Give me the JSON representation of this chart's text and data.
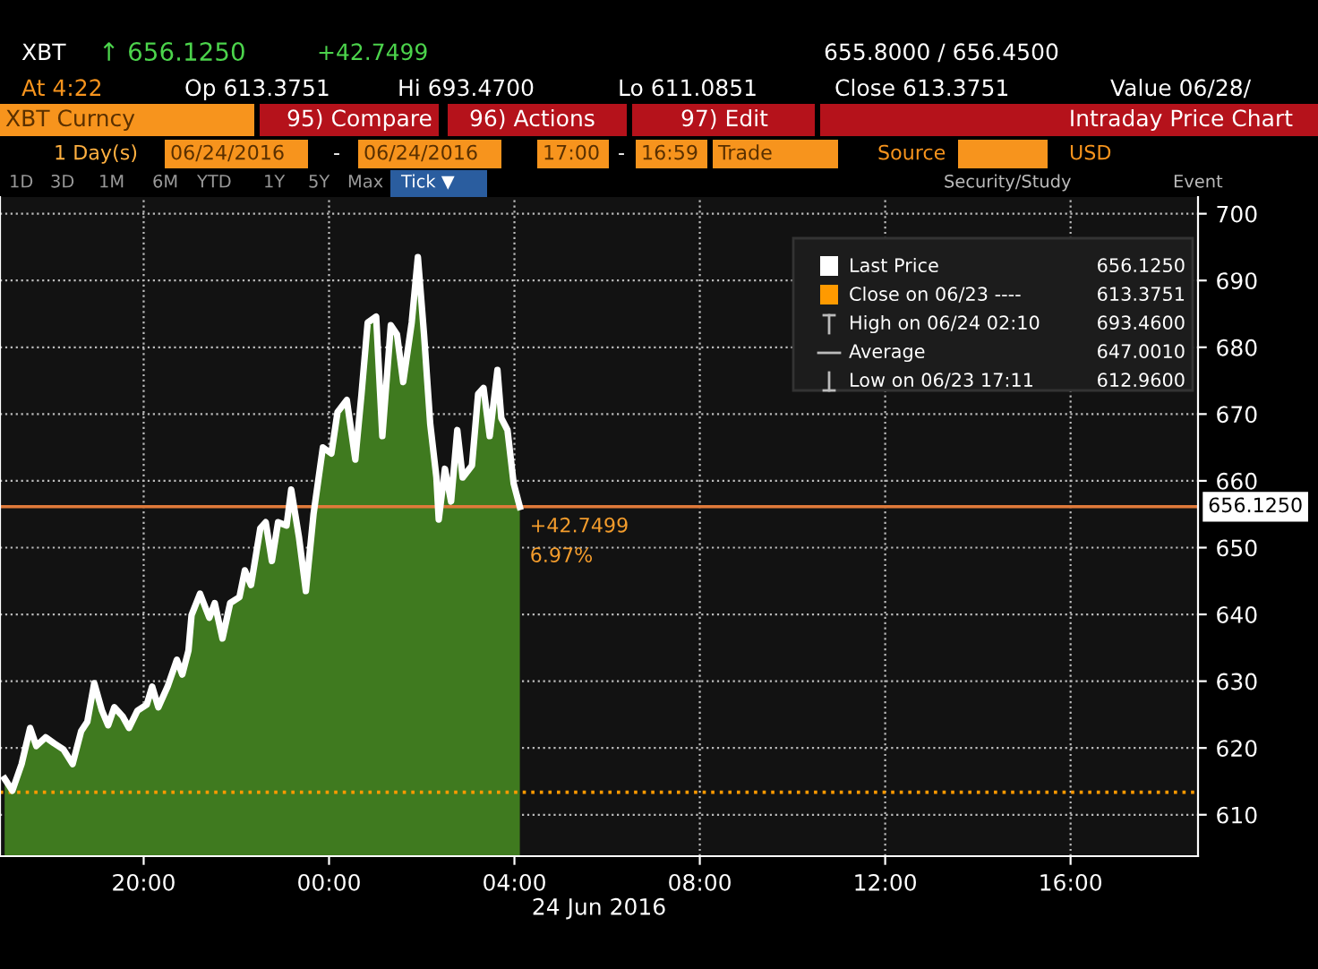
{
  "chart_data": {
    "type": "area",
    "title": "Intraday Price Chart",
    "xlabel": "24 Jun 2016",
    "x": [
      "2016-06-23T17:00",
      "2016-06-23T17:10",
      "2016-06-23T17:22",
      "2016-06-23T17:33",
      "2016-06-23T17:41",
      "2016-06-23T17:53",
      "2016-06-23T18:04",
      "2016-06-23T18:16",
      "2016-06-23T18:28",
      "2016-06-23T18:39",
      "2016-06-23T18:47",
      "2016-06-23T18:56",
      "2016-06-23T19:06",
      "2016-06-23T19:14",
      "2016-06-23T19:22",
      "2016-06-23T19:33",
      "2016-06-23T19:41",
      "2016-06-23T19:52",
      "2016-06-23T20:04",
      "2016-06-23T20:11",
      "2016-06-23T20:19",
      "2016-06-23T20:31",
      "2016-06-23T20:43",
      "2016-06-23T20:50",
      "2016-06-23T20:58",
      "2016-06-23T21:02",
      "2016-06-23T21:13",
      "2016-06-23T21:25",
      "2016-06-23T21:32",
      "2016-06-23T21:42",
      "2016-06-23T21:52",
      "2016-06-23T22:04",
      "2016-06-23T22:11",
      "2016-06-23T22:19",
      "2016-06-23T22:31",
      "2016-06-23T22:38",
      "2016-06-23T22:46",
      "2016-06-23T22:54",
      "2016-06-23T23:05",
      "2016-06-23T23:11",
      "2016-06-23T23:21",
      "2016-06-23T23:30",
      "2016-06-23T23:40",
      "2016-06-23T23:52",
      "2016-06-24T00:03",
      "2016-06-24T00:11",
      "2016-06-24T00:23",
      "2016-06-24T00:34",
      "2016-06-24T00:42",
      "2016-06-24T00:50",
      "2016-06-24T01:01",
      "2016-06-24T01:09",
      "2016-06-24T01:20",
      "2016-06-24T01:28",
      "2016-06-24T01:36",
      "2016-06-24T01:47",
      "2016-06-24T01:55",
      "2016-06-24T02:03",
      "2016-06-24T02:11",
      "2016-06-24T02:19",
      "2016-06-24T02:22",
      "2016-06-24T02:30",
      "2016-06-24T02:38",
      "2016-06-24T02:46",
      "2016-06-24T02:53",
      "2016-06-24T03:05",
      "2016-06-24T03:13",
      "2016-06-24T03:20",
      "2016-06-24T03:28",
      "2016-06-24T03:38",
      "2016-06-24T03:43",
      "2016-06-24T03:51",
      "2016-06-24T03:59",
      "2016-06-24T04:07"
    ],
    "series": [
      {
        "name": "Last Price",
        "color": "#ffffff",
        "values": [
          615.4,
          613.6,
          617.6,
          623.0,
          620.3,
          621.6,
          620.7,
          619.8,
          617.6,
          622.5,
          623.9,
          629.7,
          625.6,
          623.4,
          626.1,
          624.7,
          623.0,
          625.6,
          626.5,
          629.2,
          626.1,
          629.2,
          633.2,
          631.0,
          634.6,
          639.9,
          643.1,
          639.5,
          641.7,
          636.4,
          641.7,
          642.6,
          646.6,
          644.4,
          652.9,
          653.8,
          648.0,
          653.8,
          653.3,
          658.7,
          651.6,
          643.5,
          655.1,
          665.0,
          664.1,
          670.3,
          672.1,
          663.2,
          673.0,
          683.7,
          684.6,
          666.7,
          683.3,
          681.9,
          674.8,
          683.7,
          693.5,
          681.9,
          668.5,
          660.5,
          654.2,
          661.8,
          656.9,
          667.6,
          660.5,
          662.3,
          673.0,
          673.9,
          666.7,
          676.6,
          669.4,
          667.6,
          659.6,
          656.1
        ]
      }
    ],
    "xlim": [
      "2016-06-23T16:54",
      "2016-06-24T18:45"
    ],
    "ylim": [
      603.8,
      702.5
    ],
    "xticks": [
      {
        "value": "2016-06-23T20:00",
        "label": "20:00"
      },
      {
        "value": "2016-06-24T00:00",
        "label": "00:00"
      },
      {
        "value": "2016-06-24T04:00",
        "label": "04:00"
      },
      {
        "value": "2016-06-24T08:00",
        "label": "08:00"
      },
      {
        "value": "2016-06-24T12:00",
        "label": "12:00"
      },
      {
        "value": "2016-06-24T16:00",
        "label": "16:00"
      }
    ],
    "yticks": [
      610,
      620,
      630,
      640,
      650,
      660,
      670,
      680,
      690,
      700
    ],
    "grid": true,
    "legend": "top right",
    "ref_lines": [
      {
        "axis": "y",
        "value": 613.3751,
        "label": "Close on 06/23 ----",
        "color": "#ff9a00",
        "line_style": "dotted"
      },
      {
        "axis": "y",
        "value": 656.125,
        "label": "656.1250",
        "color": "#e07a3a",
        "line_style": "solid"
      }
    ],
    "annotations": [
      {
        "text": "+42.7499",
        "x": "2016-06-24T04:07",
        "y": 656.1
      },
      {
        "text": "6.97%",
        "x": "2016-06-24T04:07",
        "y": 656.1
      },
      "656.1250",
      "High on 06/24 02:10",
      "693.4600",
      "Average",
      "647.0010",
      "Low on 06/23 17:11",
      "612.9600",
      "XBT",
      "↑ 656.1250",
      "+42.7499",
      "655.8000 / 656.4500",
      "At 4:22",
      "Op 613.3751",
      "Hi 693.4700",
      "Lo 611.0851",
      "Close 613.3751",
      "Value 06/28/",
      "XBT Curncy",
      "95) Compare",
      "96) Actions",
      "97) Edit",
      "1 Day(s)",
      "06/24/2016",
      "-",
      "06/24/2016",
      "17:00",
      "-",
      "16:59",
      "Trade",
      "Source",
      "USD",
      "1D",
      "3D",
      "1M",
      "6M",
      "YTD",
      "1Y",
      "5Y",
      "Max",
      "Tick ▼",
      "Security/Study",
      "Event",
      "613.3751"
    ]
  }
}
